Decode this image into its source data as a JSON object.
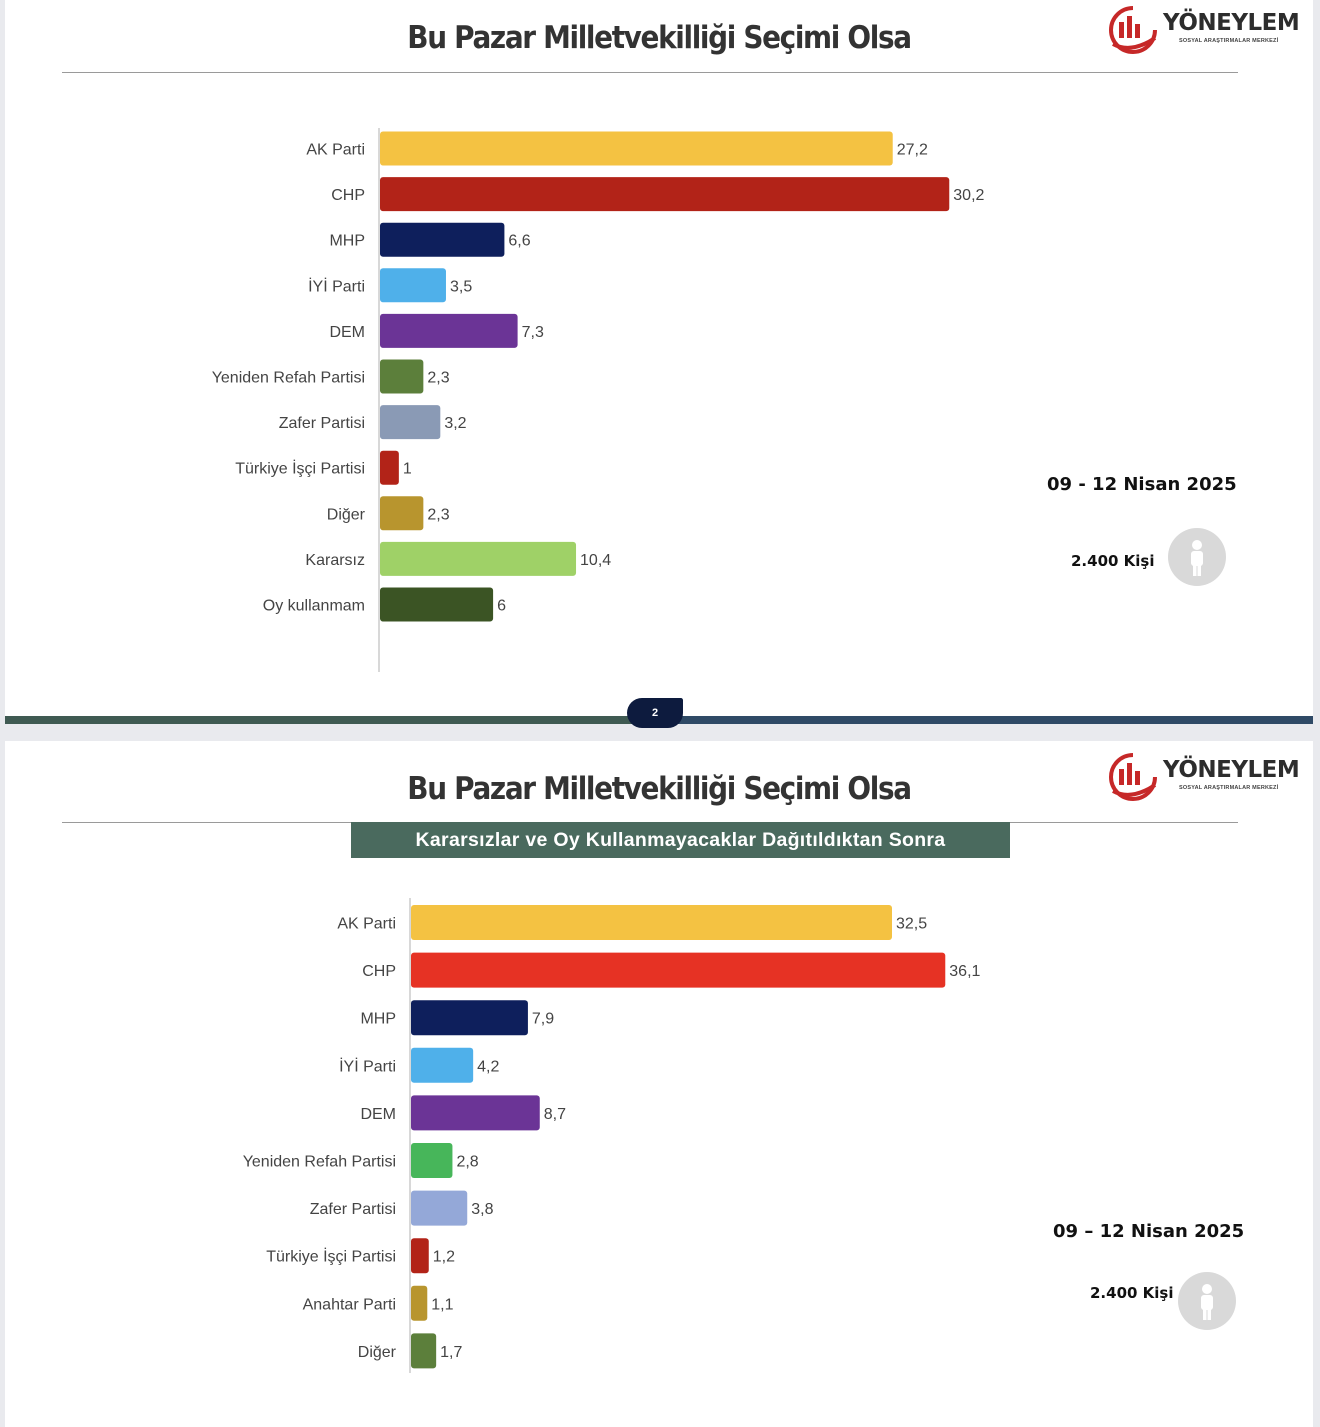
{
  "slides": [
    {
      "title": "Bu Pazar Milletvekilliği Seçimi Olsa",
      "date": "09 - 12 Nisan 2025",
      "sample": "2.400 Kişi",
      "page_number": "2"
    },
    {
      "title": "Bu Pazar Milletvekilliği Seçimi Olsa",
      "subtitle": "Kararsızlar ve Oy Kullanmayacaklar Dağıtıldıktan Sonra",
      "date": "09 – 12 Nisan 2025",
      "sample": "2.400 Kişi"
    }
  ],
  "logo": {
    "name": "YÖNEYLEM",
    "sub": "SOSYAL ARAŞTIRMALAR MERKEZİ",
    "color": "#c62828"
  },
  "chart_data": [
    {
      "type": "bar",
      "orientation": "horizontal",
      "categories": [
        "AK Parti",
        "CHP",
        "MHP",
        "İYİ Parti",
        "DEM",
        "Yeniden Refah Partisi",
        "Zafer Partisi",
        "Türkiye İşçi Partisi",
        "Diğer",
        "Kararsız",
        "Oy kullanmam"
      ],
      "values": [
        27.2,
        30.2,
        6.6,
        3.5,
        7.3,
        2.3,
        3.2,
        1,
        2.3,
        10.4,
        6
      ],
      "labels": [
        "27,2",
        "30,2",
        "6,6",
        "3,5",
        "7,3",
        "2,3",
        "3,2",
        "1",
        "2,3",
        "10,4",
        "6"
      ],
      "colors": [
        "#f4c242",
        "#b22318",
        "#0e1f5c",
        "#4fb0ea",
        "#6b3496",
        "#5c7f3b",
        "#8a9ab5",
        "#b22318",
        "#b8952e",
        "#9fd167",
        "#3b5424"
      ]
    },
    {
      "type": "bar",
      "orientation": "horizontal",
      "categories": [
        "AK Parti",
        "CHP",
        "MHP",
        "İYİ Parti",
        "DEM",
        "Yeniden Refah Partisi",
        "Zafer Partisi",
        "Türkiye İşçi Partisi",
        "Anahtar Parti",
        "Diğer"
      ],
      "values": [
        32.5,
        36.1,
        7.9,
        4.2,
        8.7,
        2.8,
        3.8,
        1.2,
        1.1,
        1.7
      ],
      "labels": [
        "32,5",
        "36,1",
        "7,9",
        "4,2",
        "8,7",
        "2,8",
        "3,8",
        "1,2",
        "1,1",
        "1,7"
      ],
      "colors": [
        "#f4c242",
        "#e63224",
        "#0e1f5c",
        "#4fb0ea",
        "#6b3496",
        "#47b65a",
        "#94a8d8",
        "#b22318",
        "#b8952e",
        "#5c7f3b"
      ]
    }
  ]
}
